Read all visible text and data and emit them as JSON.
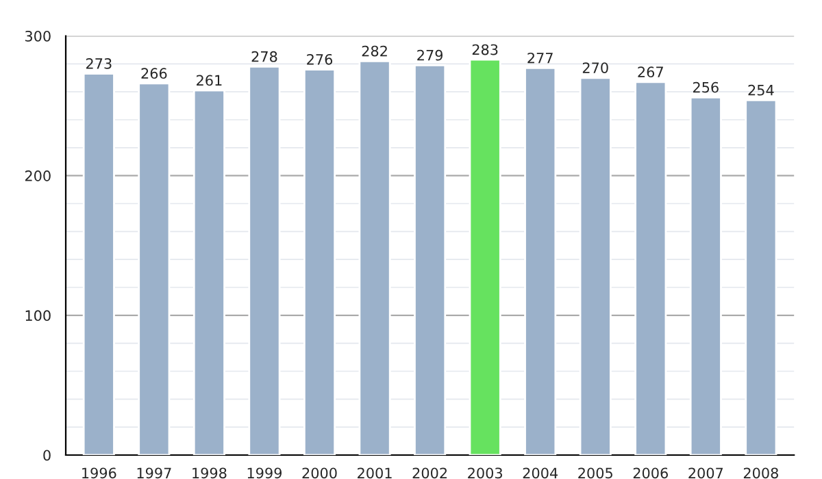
{
  "chart_data": {
    "type": "bar",
    "categories": [
      "1996",
      "1997",
      "1998",
      "1999",
      "2000",
      "2001",
      "2002",
      "2003",
      "2004",
      "2005",
      "2006",
      "2007",
      "2008"
    ],
    "values": [
      273,
      266,
      261,
      278,
      276,
      282,
      279,
      283,
      277,
      270,
      267,
      256,
      254
    ],
    "colors": [
      "#9bb1ca",
      "#9bb1ca",
      "#9bb1ca",
      "#9bb1ca",
      "#9bb1ca",
      "#9bb1ca",
      "#9bb1ca",
      "#66e25f",
      "#9bb1ca",
      "#9bb1ca",
      "#9bb1ca",
      "#9bb1ca",
      "#9bb1ca"
    ],
    "ylim": [
      0,
      300
    ],
    "yticks": [
      0,
      100,
      200,
      300
    ],
    "grid": "y",
    "data_labels": true
  }
}
